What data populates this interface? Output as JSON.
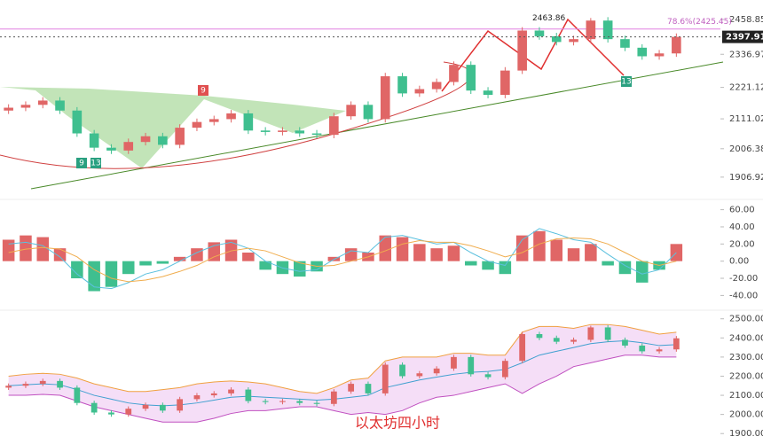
{
  "chart_data": [
    {
      "type": "candlestick",
      "open": [
        2140,
        2150,
        2160,
        2175,
        2140,
        2060,
        2010,
        2000,
        2030,
        2050,
        2020,
        2080,
        2100,
        2110,
        2130,
        2070,
        2065,
        2070,
        2060,
        2055,
        2120,
        2160,
        2110,
        2260,
        2200,
        2215,
        2240,
        2300,
        2210,
        2195,
        2280,
        2420,
        2400,
        2380,
        2390,
        2455,
        2390,
        2360,
        2330,
        2340
      ],
      "high": [
        2162,
        2172,
        2187,
        2187,
        2152,
        2072,
        2022,
        2042,
        2062,
        2062,
        2092,
        2112,
        2122,
        2142,
        2142,
        2082,
        2082,
        2082,
        2072,
        2132,
        2172,
        2172,
        2272,
        2272,
        2227,
        2252,
        2312,
        2312,
        2222,
        2292,
        2432,
        2432,
        2412,
        2402,
        2464,
        2467,
        2402,
        2372,
        2352,
        2410
      ],
      "low": [
        2128,
        2138,
        2148,
        2128,
        2048,
        1998,
        1988,
        1988,
        2018,
        2008,
        2008,
        2068,
        2088,
        2098,
        2058,
        2053,
        2053,
        2048,
        2043,
        2043,
        2108,
        2098,
        2098,
        2188,
        2188,
        2203,
        2228,
        2198,
        2183,
        2183,
        2268,
        2388,
        2368,
        2368,
        2378,
        2378,
        2348,
        2318,
        2318,
        2328
      ],
      "close": [
        2150,
        2160,
        2175,
        2140,
        2060,
        2010,
        2000,
        2030,
        2050,
        2020,
        2080,
        2100,
        2110,
        2130,
        2070,
        2065,
        2070,
        2060,
        2055,
        2120,
        2160,
        2110,
        2260,
        2200,
        2215,
        2240,
        2300,
        2210,
        2195,
        2280,
        2420,
        2400,
        2380,
        2390,
        2455,
        2390,
        2360,
        2330,
        2340,
        2398
      ],
      "up_color": "#e06666",
      "down_color": "#3fbf8f",
      "ylim": [
        1860,
        2527
      ],
      "yticks": [
        1906.92,
        2006.38,
        2111.02,
        2221.12,
        2336.97,
        2458.85
      ],
      "last_price": 2397.91,
      "fib_level": {
        "value": 2425.45,
        "label": "78.6%(2425.45)"
      },
      "peak": 2463.86,
      "countdown_labels": [
        "9",
        "13",
        "9",
        "13"
      ]
    },
    {
      "type": "macd",
      "histogram": [
        25,
        30,
        28,
        15,
        -20,
        -35,
        -30,
        -15,
        -5,
        -3,
        5,
        15,
        22,
        25,
        10,
        -10,
        -15,
        -18,
        -12,
        5,
        15,
        10,
        30,
        28,
        20,
        15,
        18,
        -5,
        -10,
        -15,
        30,
        35,
        25,
        15,
        20,
        -5,
        -15,
        -25,
        -10,
        20
      ],
      "dif": [
        20,
        22,
        18,
        5,
        -15,
        -30,
        -32,
        -25,
        -15,
        -10,
        0,
        10,
        18,
        22,
        15,
        0,
        -8,
        -12,
        -10,
        2,
        12,
        10,
        28,
        30,
        25,
        20,
        22,
        10,
        0,
        -5,
        25,
        38,
        32,
        25,
        22,
        8,
        -5,
        -15,
        -10,
        10
      ],
      "dea": [
        10,
        14,
        16,
        14,
        5,
        -10,
        -20,
        -24,
        -22,
        -18,
        -12,
        -5,
        5,
        12,
        15,
        12,
        5,
        -2,
        -6,
        -5,
        0,
        5,
        12,
        20,
        24,
        22,
        22,
        18,
        12,
        5,
        10,
        20,
        26,
        27,
        26,
        20,
        10,
        0,
        -5,
        0
      ],
      "dif_color": "#5bc0de",
      "dea_color": "#f0ad4e",
      "ylim": [
        -52,
        72
      ],
      "yticks": [
        {
          "value": 60,
          "label": "60.00"
        },
        {
          "value": 40,
          "label": "40.00"
        },
        {
          "value": 20,
          "label": "20.00"
        },
        {
          "value": 0,
          "label": "0.00"
        },
        {
          "value": -20,
          "label": "-20.00"
        },
        {
          "value": -40,
          "label": "-40.00"
        }
      ]
    },
    {
      "type": "bollinger",
      "upper": [
        2200,
        2210,
        2215,
        2210,
        2190,
        2160,
        2140,
        2120,
        2120,
        2130,
        2140,
        2160,
        2170,
        2175,
        2170,
        2160,
        2140,
        2120,
        2110,
        2140,
        2180,
        2190,
        2280,
        2300,
        2300,
        2300,
        2320,
        2320,
        2310,
        2310,
        2430,
        2460,
        2460,
        2450,
        2470,
        2470,
        2460,
        2440,
        2420,
        2430
      ],
      "middle": [
        2150,
        2155,
        2160,
        2155,
        2130,
        2100,
        2080,
        2060,
        2050,
        2045,
        2050,
        2060,
        2075,
        2090,
        2095,
        2090,
        2085,
        2080,
        2075,
        2080,
        2090,
        2100,
        2140,
        2160,
        2180,
        2195,
        2210,
        2220,
        2225,
        2235,
        2270,
        2310,
        2330,
        2350,
        2370,
        2380,
        2385,
        2375,
        2360,
        2365
      ],
      "lower": [
        2100,
        2100,
        2105,
        2100,
        2070,
        2040,
        2020,
        2000,
        1980,
        1960,
        1960,
        1960,
        1980,
        2005,
        2020,
        2020,
        2030,
        2040,
        2040,
        2020,
        2000,
        2010,
        2000,
        2020,
        2060,
        2090,
        2100,
        2120,
        2140,
        2160,
        2110,
        2160,
        2200,
        2250,
        2270,
        2290,
        2310,
        2310,
        2300,
        2300
      ],
      "upper_color": "#f0a040",
      "middle_color": "#40a0d0",
      "lower_color": "#c050c0",
      "band_color": "#f3d6f5",
      "ylim": [
        1864,
        2545
      ],
      "yticks": [
        {
          "value": 2500,
          "label": "2500.00"
        },
        {
          "value": 2400,
          "label": "2400.00"
        },
        {
          "value": 2300,
          "label": "2300.00"
        },
        {
          "value": 2200,
          "label": "2200.00"
        },
        {
          "value": 2100,
          "label": "2100.00"
        },
        {
          "value": 2000,
          "label": "2000.00"
        },
        {
          "value": 1900,
          "label": "1900.00"
        }
      ],
      "watermark": "以太坊四小时"
    }
  ]
}
